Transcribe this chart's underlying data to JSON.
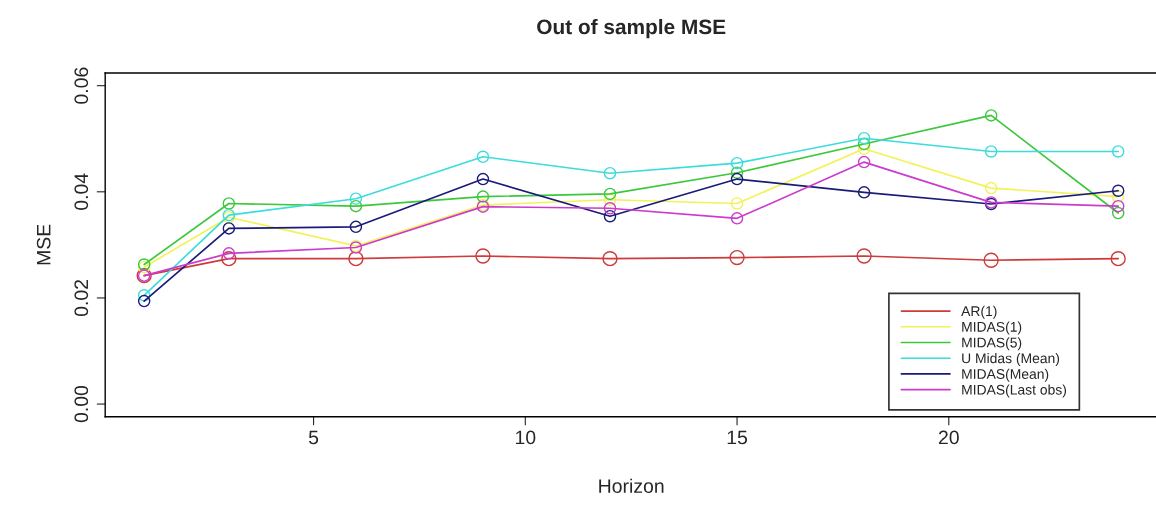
{
  "chart_data": {
    "type": "line",
    "title": "Out of sample MSE",
    "xlabel": "Horizon",
    "ylabel": "MSE",
    "x": [
      1,
      3,
      6,
      9,
      12,
      15,
      18,
      21,
      24
    ],
    "series": [
      {
        "name": "AR(1)",
        "color": "#cd3b3b",
        "values": [
          0.0242,
          0.0274,
          0.0274,
          0.0279,
          0.0274,
          0.0276,
          0.0279,
          0.0271,
          0.0274
        ]
      },
      {
        "name": "MIDAS(1)",
        "color": "#f2f25a",
        "values": [
          0.0258,
          0.0352,
          0.0298,
          0.0375,
          0.0385,
          0.0378,
          0.0481,
          0.0407,
          0.0391
        ]
      },
      {
        "name": "MIDAS(5)",
        "color": "#3cc83c",
        "values": [
          0.0263,
          0.0378,
          0.0373,
          0.0391,
          0.0396,
          0.0436,
          0.049,
          0.0544,
          0.036
        ]
      },
      {
        "name": "U Midas (Mean)",
        "color": "#3cdcdc",
        "values": [
          0.0205,
          0.0356,
          0.0387,
          0.0466,
          0.0435,
          0.0454,
          0.0501,
          0.0476,
          0.0476
        ]
      },
      {
        "name": "MIDAS(Mean)",
        "color": "#1a1a7a",
        "values": [
          0.0194,
          0.0331,
          0.0334,
          0.0424,
          0.0354,
          0.0424,
          0.0399,
          0.0377,
          0.0402
        ]
      },
      {
        "name": "MIDAS(Last obs)",
        "color": "#cc3ccc",
        "values": [
          0.0242,
          0.0284,
          0.0295,
          0.0372,
          0.0369,
          0.035,
          0.0456,
          0.038,
          0.0373
        ]
      }
    ],
    "xlim": [
      0.08,
      24.92
    ],
    "ylim": [
      -0.0024,
      0.0624
    ],
    "xticks": [
      5,
      10,
      15,
      20
    ],
    "yticks": [
      {
        "value": 0,
        "label": "0.00"
      },
      {
        "value": 0.02,
        "label": "0.02"
      },
      {
        "value": 0.04,
        "label": "0.04"
      },
      {
        "value": 0.06,
        "label": "0.06"
      }
    ],
    "marker": "circle",
    "line_style": "solid",
    "grid": false,
    "legend": "bottom right"
  }
}
